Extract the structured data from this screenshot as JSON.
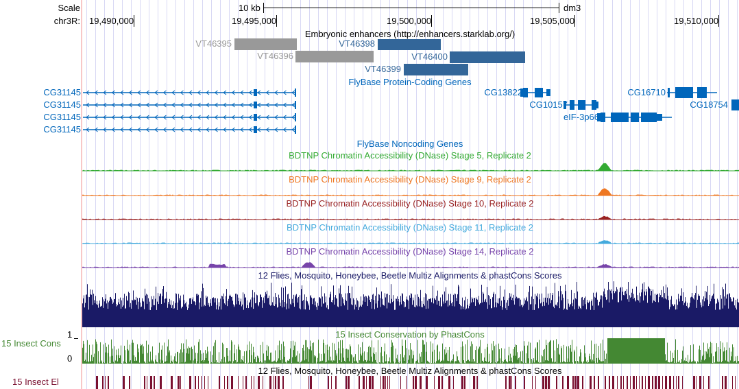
{
  "header": {
    "scale_label": "Scale",
    "scale_bar": "10 kb",
    "assembly": "dm3",
    "chrom": "chr3R:",
    "ticks": [
      "19,490,000",
      "19,495,000",
      "19,500,000",
      "19,505,000",
      "19,510,000"
    ]
  },
  "tracks": {
    "enhancers": {
      "title": "Embryonic enhancers (http://enhancers.starklab.org/)",
      "items": [
        {
          "name": "VT46395",
          "color": "#999999"
        },
        {
          "name": "VT46396",
          "color": "#999999"
        },
        {
          "name": "VT46398",
          "color": "#336699"
        },
        {
          "name": "VT46400",
          "color": "#336699"
        },
        {
          "name": "VT46399",
          "color": "#336699"
        }
      ]
    },
    "protein_coding": {
      "title": "FlyBase Protein-Coding Genes",
      "genes": [
        "CG31145",
        "CG31145",
        "CG31145",
        "CG31145",
        "CG13822",
        "CG10157",
        "eIF-3p66",
        "CG16710",
        "CG18754"
      ]
    },
    "noncoding": {
      "title": "FlyBase Noncoding Genes"
    },
    "dnase": [
      {
        "title": "BDTNP Chromatin Accessibility (DNase) Stage 5, Replicate 2",
        "color": "#33aa33"
      },
      {
        "title": "BDTNP Chromatin Accessibility (DNase) Stage 9, Replicate 2",
        "color": "#ee7722"
      },
      {
        "title": "BDTNP Chromatin Accessibility (DNase) Stage 10, Replicate 2",
        "color": "#992222"
      },
      {
        "title": "BDTNP Chromatin Accessibility (DNase) Stage 11, Replicate 2",
        "color": "#44aadd"
      },
      {
        "title": "BDTNP Chromatin Accessibility (DNase) Stage 14, Replicate 2",
        "color": "#7744aa"
      }
    ],
    "multiz": {
      "title": "12 Flies, Mosquito, Honeybee, Beetle Multiz Alignments & phastCons Scores",
      "color": "#1a1a66"
    },
    "phastcons": {
      "title": "15 Insect Conservation by PhastCons",
      "side_label": "15 Insect Cons",
      "y_max": "1",
      "y_min": "0",
      "color": "#448833"
    },
    "elements": {
      "title": "12 Flies, Mosquito, Honeybee, Beetle Multiz Alignments & phastCons Scores",
      "side_label": "15 Insect El",
      "color": "#7a1030"
    }
  }
}
